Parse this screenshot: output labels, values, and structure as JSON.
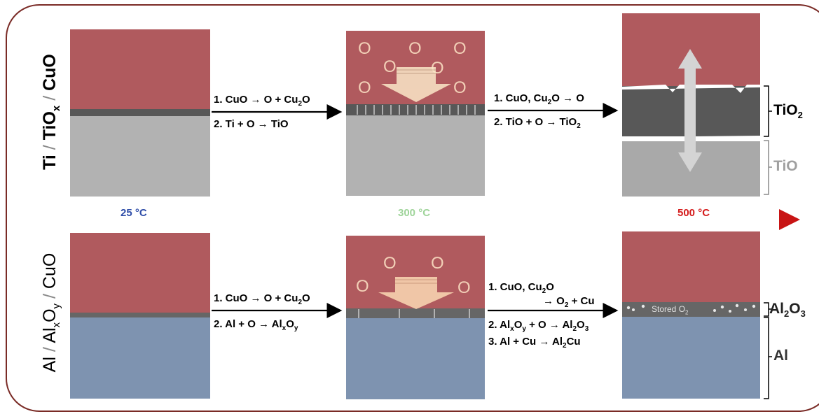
{
  "top_row": {
    "label_parts": [
      "Ti",
      " / ",
      "TiO",
      "x",
      " / ",
      "CuO"
    ],
    "step1": {
      "eq1": {
        "a": "1. CuO → O + Cu",
        "sub": "2",
        "b": "O"
      },
      "eq2": {
        "a": "2. Ti + O → TiO"
      }
    },
    "step2": {
      "eq1": {
        "a": "1. CuO, Cu",
        "sub": "2",
        "b": "O → O"
      },
      "eq2": {
        "a": "2. TiO + O → TiO",
        "sub": "2"
      }
    },
    "side_labels": {
      "upper": "TiO",
      "upper_sub": "2",
      "lower": "TiO"
    },
    "o_symbol": "O"
  },
  "temperature_bar": {
    "labels": [
      "25 °C",
      "300 °C",
      "500 °C"
    ],
    "colors": [
      "#2e4da8",
      "#9fd49a",
      "#d41c1c"
    ]
  },
  "bottom_row": {
    "label_parts": [
      "Al",
      " / ",
      "Al",
      "x",
      "O",
      "y",
      " / ",
      "CuO"
    ],
    "step1": {
      "eq1": {
        "a": "1. CuO → O + Cu",
        "sub": "2",
        "b": "O"
      },
      "eq2": {
        "a": "2. Al + O → Al",
        "sub1": "x",
        "mid": "O",
        "sub2": "y"
      }
    },
    "step2": {
      "eq1": {
        "a": "1.  CuO, Cu",
        "sub": "2",
        "b": "O"
      },
      "eq1b": {
        "a": "→ O",
        "sub": "2",
        "b": " + Cu"
      },
      "eq2": {
        "a": "2. Al",
        "sub1": "x",
        "mid": "O",
        "sub2": "y",
        "b": "  + O → Al",
        "sub3": "2",
        "c": "O",
        "sub4": "3"
      },
      "eq3": {
        "a": "3. Al + Cu → Al",
        "sub": "2",
        "b": "Cu"
      }
    },
    "stored": {
      "a": "Stored O",
      "sub": "2"
    },
    "side_labels": {
      "upper": "Al",
      "upper_sub1": "2",
      "upper_mid": "O",
      "upper_sub2": "3",
      "lower": "Al"
    },
    "o_symbol": "O"
  }
}
